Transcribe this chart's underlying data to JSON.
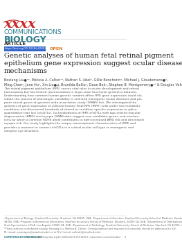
{
  "bg_color": "#ffffff",
  "logo_color_red": "#cc2929",
  "logo_color_teal": "#2e7d8c",
  "logo_text_comm": "COMMUNICATIONS",
  "logo_text_bio": "BIOLOGY",
  "article_label": "ARTICLE",
  "doi_text": "https://doi.org/10.1038/s42003-019-0430-6",
  "open_text": "OPEN",
  "open_color": "#e07820",
  "title": "Genetic analyses of human fetal retinal pigment\nepithelium gene expression suggest ocular disease\nmechanisms",
  "authors": "Boxiang Liu●¹⁴, Melissa A. Calton¹⁴, Nathan S. Abel², Gillie Benchorin², Michael J. Gloudemans●³,\nMing Chen², Jane Hu², Xin Liu●µ, Brunilda Balliu², Dean Bok⁴, Stephen B. Montgomery●²³ & Douglas Vollrath²",
  "abstract_text": "The retinal pigment epithelium (RPE) serves vital roles in ocular development and retinal\nhomeostasis but has limited representation in large-scale functional genomics datasets.\nUnderstanding how common human genetic variants affect RPE gene expression could elu-\ncidate the sources of phenotypic variability in selected monogenic ocular diseases and pin-\npoint causal genes at genome-wide association study (GWAS) loci. We interrogated the\ngenetics of gene expression of cultured human fetal RPE (fRPE) cells under two metabolic\nconditions and discovered hundreds of shared or condition-specific expression or splice\nquantitative trait loci (e/sQTLs). Co-localizations of fRPE e/sQTLs with age-related macular\ndegeneration (AMD) and myopia GWAS data suggest new candidate genes, and mechan-\nisms by which a common RDHE allele contributes to both increased AMD risk and decreased\nmyopia risk. Our study highlights the unique transcriptomic characteristics of fRPE and\nprovides a resource to connect e/sQTLs in a critical ocular cell type to monogenic and\ncomplex eye disorders.",
  "footnote_text": "¹Department of Biology, Stanford University, Stanford, CA 94305, USA. ²Department of Genetics, Stanford University School of Medicine, Stanford, CA\n94305, USA. ³Program in Biomedical Informatics, Stanford University School of Medicine, Stanford, 94305 CA, USA. ⁴Department of Ophthalmology, Jules\nStein Eye Institute, UCLA, Los Angeles 90095 CA, USA. ⁵Department of Pathology, Stanford University School of Medicine, Stanford, CA 94305, USA.\n*These authors contributed equally: Boxiang Liu, Melissa A. Calton. Correspondence and requests for materials should be addressed to S.B.\nM. (email: smontgom@stanford.edu) or to D.V. (email: vollrath@stanford.edu)",
  "bottom_journal": "COMMUNICATIONS BIOLOGY",
  "bottom_doi": "(2019) 2:186 | https://doi.org/10.1038/s42003-019-0430-6 | www.nature.com/commsbioe",
  "bottom_page": "1",
  "teal_color": "#2e7d8c",
  "title_color": "#1a1a1a",
  "author_color": "#444444",
  "abstract_color": "#555555",
  "footnote_color": "#666666"
}
